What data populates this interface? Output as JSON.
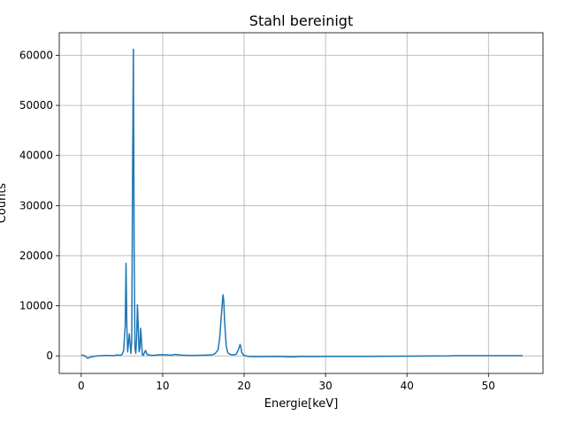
{
  "chart_data": {
    "type": "line",
    "title": "Stahl bereinigt",
    "xlabel": "Energie[keV]",
    "ylabel": "Counts",
    "xlim": [
      -2.7,
      56.7
    ],
    "ylim": [
      -3500,
      64500
    ],
    "xticks": [
      0,
      10,
      20,
      30,
      40,
      50
    ],
    "yticks": [
      0,
      10000,
      20000,
      30000,
      40000,
      50000,
      60000
    ],
    "grid": true,
    "color": "#1f77b4",
    "series": [
      {
        "x": [
          0,
          0.3,
          0.6,
          0.8,
          1.0,
          1.5,
          2.0,
          3.0,
          4.0,
          4.5,
          4.8,
          5.0,
          5.2,
          5.4,
          5.5,
          5.6,
          5.7,
          5.8,
          5.9,
          6.0,
          6.1,
          6.2,
          6.3,
          6.4,
          6.5,
          6.6,
          6.7,
          6.8,
          6.9,
          7.0,
          7.1,
          7.2,
          7.3,
          7.4,
          7.5,
          7.6,
          7.7,
          7.8,
          7.9,
          8.0,
          8.1,
          8.2,
          8.3,
          8.5,
          8.8,
          9.0,
          9.5,
          10.0,
          10.5,
          11.0,
          11.5,
          12.0,
          12.5,
          13.0,
          14.0,
          15.0,
          16.0,
          16.4,
          16.8,
          17.0,
          17.2,
          17.4,
          17.5,
          17.6,
          17.8,
          18.0,
          18.3,
          18.6,
          19.0,
          19.3,
          19.5,
          19.6,
          19.7,
          19.9,
          20.1,
          20.5,
          21.0,
          22.0,
          24.0,
          26.0,
          27.0,
          28.0,
          30.0,
          35.0,
          40.0,
          45.0,
          46.0,
          50.0,
          54.2
        ],
        "y": [
          200,
          100,
          -200,
          -500,
          -300,
          -100,
          0,
          100,
          50,
          200,
          100,
          300,
          1000,
          6000,
          18500,
          6000,
          800,
          2500,
          4400,
          2500,
          500,
          3000,
          35000,
          61200,
          20000,
          1500,
          500,
          3500,
          10200,
          6000,
          800,
          1500,
          5500,
          3000,
          300,
          100,
          400,
          800,
          1100,
          600,
          300,
          250,
          200,
          150,
          100,
          150,
          200,
          250,
          200,
          150,
          300,
          200,
          150,
          100,
          100,
          150,
          200,
          400,
          1200,
          3500,
          8000,
          12200,
          11000,
          7000,
          2000,
          600,
          300,
          200,
          300,
          1200,
          2300,
          1800,
          700,
          200,
          50,
          -100,
          -150,
          -150,
          -100,
          -200,
          -100,
          -150,
          -100,
          -100,
          -50,
          0,
          50,
          50,
          50
        ]
      }
    ]
  }
}
